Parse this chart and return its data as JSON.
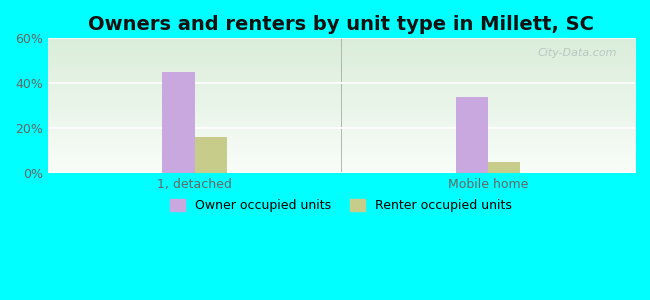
{
  "title": "Owners and renters by unit type in Millett, SC",
  "categories": [
    "1, detached",
    "Mobile home"
  ],
  "owner_values": [
    45.0,
    34.0
  ],
  "renter_values": [
    16.0,
    5.0
  ],
  "owner_color": "#c9a8e0",
  "renter_color": "#c8cc8a",
  "ylim": [
    0,
    60
  ],
  "yticks": [
    0,
    20,
    40,
    60
  ],
  "ytick_labels": [
    "0%",
    "20%",
    "40%",
    "60%"
  ],
  "bar_width": 0.18,
  "legend_owner": "Owner occupied units",
  "legend_renter": "Renter occupied units",
  "bg_outer": "#00FFFF",
  "watermark": "City-Data.com",
  "title_fontsize": 14,
  "tick_fontsize": 9
}
